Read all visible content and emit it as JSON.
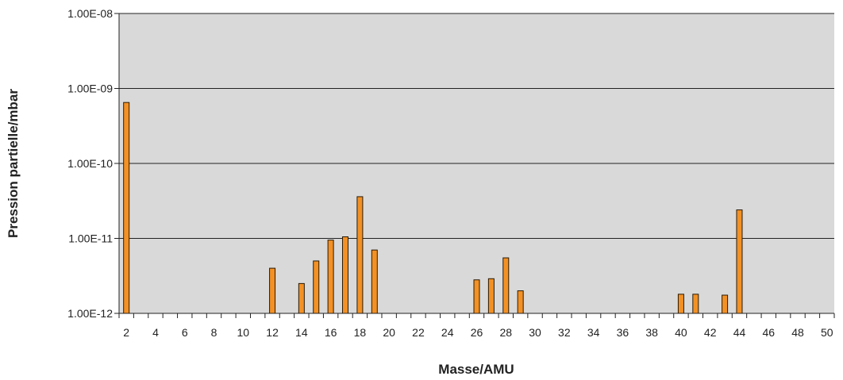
{
  "chart_data": {
    "type": "bar",
    "title": "",
    "xlabel": "Masse/AMU",
    "ylabel": "Pression partielle/mbar",
    "y_scale": "log",
    "ylim": [
      1e-12,
      1e-08
    ],
    "grid": true,
    "y_ticks": [
      {
        "value": 1e-08,
        "label": "1.00E-08"
      },
      {
        "value": 1e-09,
        "label": "1.00E-09"
      },
      {
        "value": 1e-10,
        "label": "1.00E-10"
      },
      {
        "value": 1e-11,
        "label": "1.00E-11"
      },
      {
        "value": 1e-12,
        "label": "1.00E-12"
      }
    ],
    "x_tick_labels": [
      "2",
      "4",
      "6",
      "8",
      "10",
      "12",
      "14",
      "16",
      "18",
      "20",
      "22",
      "24",
      "26",
      "28",
      "30",
      "32",
      "34",
      "36",
      "38",
      "40",
      "42",
      "44",
      "46",
      "48",
      "50"
    ],
    "categories": [
      2,
      3,
      4,
      5,
      6,
      7,
      8,
      9,
      10,
      11,
      12,
      13,
      14,
      15,
      16,
      17,
      18,
      19,
      20,
      21,
      22,
      23,
      24,
      25,
      26,
      27,
      28,
      29,
      30,
      31,
      32,
      33,
      34,
      35,
      36,
      37,
      38,
      39,
      40,
      41,
      42,
      43,
      44,
      45,
      46,
      47,
      48,
      49,
      50
    ],
    "values": [
      6.5e-10,
      1e-12,
      1e-12,
      1e-12,
      1e-12,
      1e-12,
      1e-12,
      1e-12,
      1e-12,
      1e-12,
      4e-12,
      1e-12,
      2.5e-12,
      5e-12,
      9.5e-12,
      1.05e-11,
      3.6e-11,
      7e-12,
      1e-12,
      1e-12,
      1e-12,
      1e-12,
      1e-12,
      1e-12,
      2.8e-12,
      2.9e-12,
      5.5e-12,
      2e-12,
      1e-12,
      1e-12,
      1e-12,
      1e-12,
      1e-12,
      1e-12,
      1e-12,
      1e-12,
      1e-12,
      1e-12,
      1.8e-12,
      1.8e-12,
      1e-12,
      1.75e-12,
      2.4e-11,
      1e-12,
      1e-12,
      1e-12,
      1e-12,
      1e-12,
      1e-12
    ],
    "colors": {
      "bar_fill": "#f39125",
      "bar_stroke": "#2a1a05",
      "plot_background": "#d9d9d9",
      "grid": "#222222"
    }
  }
}
